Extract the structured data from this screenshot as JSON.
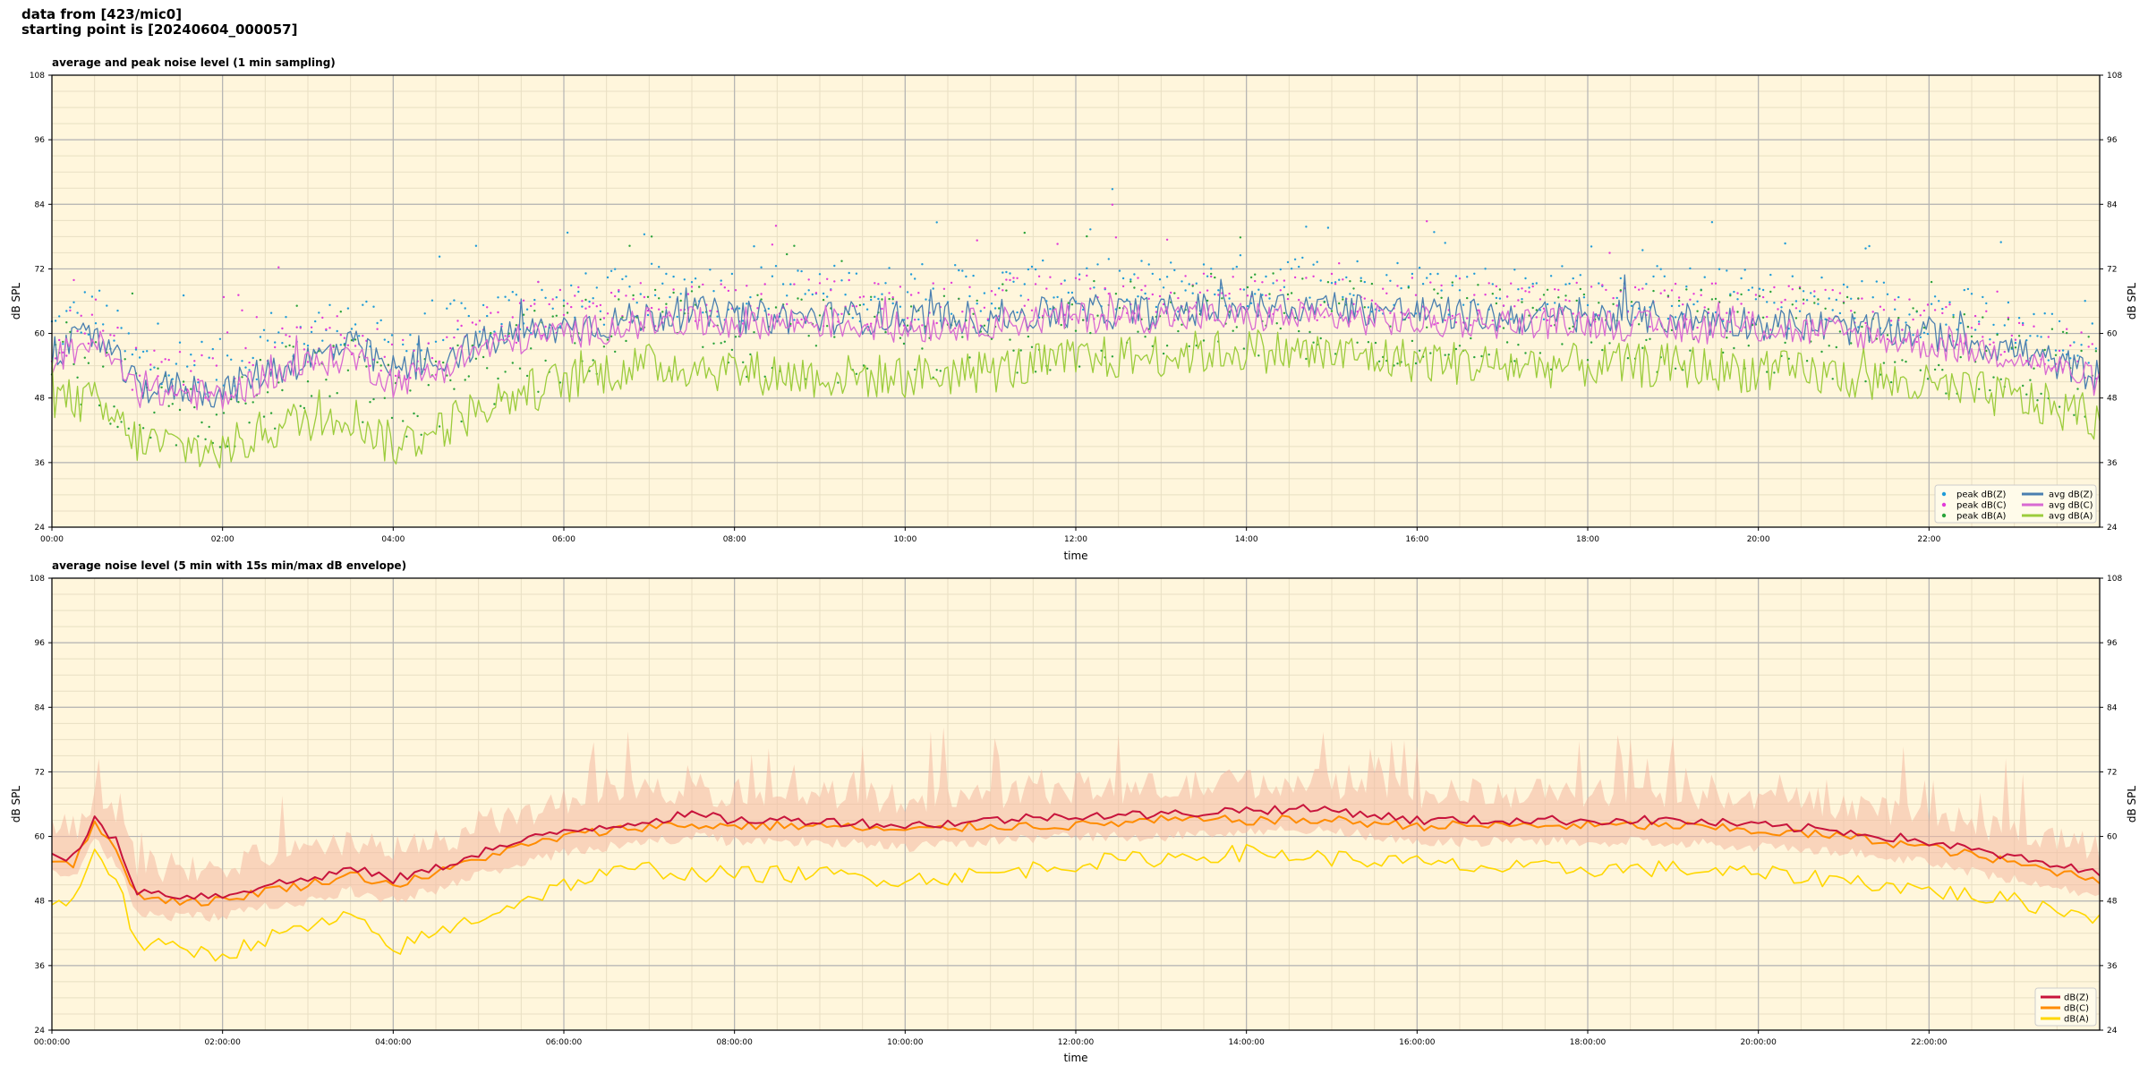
{
  "header": {
    "line1": "data from [423/mic0]",
    "line2": "starting point is [20240604_000057]"
  },
  "colors": {
    "background": "#fff6dc",
    "grid_major": "#b3b3b3",
    "grid_minor": "#e8dfc3",
    "peak_z": "#1f9bd8",
    "peak_c": "#e23ad8",
    "peak_a": "#2aa33a",
    "avg_z": "#4a7fb0",
    "avg_c": "#d86ad2",
    "avg_a": "#9ccc3c",
    "z": "#c8143c",
    "c": "#ff8c00",
    "a": "#ffd700",
    "envelope": "#f4b8a0"
  },
  "chart_data": [
    {
      "type": "scatter",
      "title": "average and peak noise level (1 min sampling)",
      "xlabel": "time",
      "ylabel": "dB SPL",
      "ylim": [
        24,
        108
      ],
      "yticks": [
        "24",
        "36",
        "48",
        "60",
        "72",
        "84",
        "96",
        "108"
      ],
      "xlim_hours": [
        0,
        24
      ],
      "xticks": [
        "00:00",
        "02:00",
        "04:00",
        "06:00",
        "08:00",
        "10:00",
        "12:00",
        "14:00",
        "16:00",
        "18:00",
        "20:00",
        "22:00"
      ],
      "grid": true,
      "legend_position": "bottom-right",
      "legend": [
        "peak dB(Z)",
        "peak dB(C)",
        "peak dB(A)",
        "avg dB(Z)",
        "avg dB(C)",
        "avg dB(A)"
      ],
      "series": [
        {
          "name": "avg dB(Z)",
          "kind": "line",
          "x_hours": [
            0,
            0.5,
            1,
            1.5,
            2,
            2.5,
            3,
            3.5,
            4,
            4.5,
            5,
            5.5,
            6,
            6.5,
            7,
            7.5,
            8,
            9,
            10,
            11,
            12,
            13,
            14,
            15,
            16,
            17,
            18,
            19,
            20,
            21,
            22,
            23,
            24
          ],
          "values": [
            56,
            60,
            50,
            50,
            49,
            53,
            55,
            58,
            53,
            55,
            58,
            60,
            61,
            62,
            63,
            64,
            63,
            63,
            63,
            63,
            64,
            64,
            65,
            65,
            64,
            63,
            63,
            63,
            62,
            61,
            60,
            57,
            52
          ]
        },
        {
          "name": "avg dB(C)",
          "kind": "line",
          "x_hours": [
            0,
            0.5,
            1,
            1.5,
            2,
            2.5,
            3,
            3.5,
            4,
            4.5,
            5,
            5.5,
            6,
            6.5,
            7,
            7.5,
            8,
            9,
            10,
            11,
            12,
            13,
            14,
            15,
            16,
            17,
            18,
            19,
            20,
            21,
            22,
            23,
            24
          ],
          "values": [
            55,
            59,
            49,
            49,
            48,
            52,
            54,
            56,
            51,
            53,
            57,
            59,
            60,
            61,
            62,
            62,
            62,
            62,
            61,
            62,
            63,
            63,
            63,
            63,
            62,
            62,
            62,
            61,
            61,
            60,
            58,
            56,
            51
          ]
        },
        {
          "name": "avg dB(A)",
          "kind": "line",
          "x_hours": [
            0,
            0.5,
            1,
            1.5,
            2,
            2.5,
            3,
            3.5,
            4,
            4.5,
            5,
            5.5,
            6,
            6.5,
            7,
            7.5,
            8,
            9,
            10,
            11,
            12,
            13,
            14,
            15,
            16,
            17,
            18,
            19,
            20,
            21,
            22,
            23,
            24
          ],
          "values": [
            48,
            47,
            40,
            39,
            38,
            42,
            44,
            45,
            39,
            42,
            46,
            49,
            51,
            53,
            54,
            54,
            53,
            52,
            52,
            53,
            55,
            56,
            57,
            56,
            55,
            54,
            54,
            54,
            53,
            52,
            50,
            48,
            44
          ]
        }
      ]
    },
    {
      "type": "line",
      "title": "average noise level (5 min with 15s min/max dB envelope)",
      "xlabel": "time",
      "ylabel": "dB SPL",
      "ylim": [
        24,
        108
      ],
      "yticks": [
        "24",
        "36",
        "48",
        "60",
        "72",
        "84",
        "96",
        "108"
      ],
      "xlim_hours": [
        0,
        24
      ],
      "xticks": [
        "00:00:00",
        "02:00:00",
        "04:00:00",
        "06:00:00",
        "08:00:00",
        "10:00:00",
        "12:00:00",
        "14:00:00",
        "16:00:00",
        "18:00:00",
        "20:00:00",
        "22:00:00"
      ],
      "grid": true,
      "legend_position": "bottom-right",
      "legend": [
        "dB(Z)",
        "dB(C)",
        "dB(A)"
      ],
      "series": [
        {
          "name": "dB(Z)",
          "x_hours": [
            0,
            0.25,
            0.5,
            0.75,
            1,
            1.5,
            2,
            2.5,
            3,
            3.5,
            4,
            4.5,
            5,
            5.5,
            6,
            6.5,
            7,
            7.5,
            8,
            9,
            10,
            11,
            12,
            13,
            14,
            15,
            16,
            17,
            18,
            19,
            20,
            21,
            22,
            23,
            24
          ],
          "values": [
            57,
            56,
            63,
            59,
            50,
            49,
            49,
            51,
            52,
            54,
            52,
            54,
            57,
            59,
            61,
            62,
            63,
            64,
            63,
            63,
            62,
            63,
            64,
            64,
            65,
            65,
            63,
            63,
            63,
            63,
            62,
            61,
            59,
            56,
            53
          ]
        },
        {
          "name": "dB(C)",
          "x_hours": [
            0,
            0.25,
            0.5,
            0.75,
            1,
            1.5,
            2,
            2.5,
            3,
            3.5,
            4,
            4.5,
            5,
            5.5,
            6,
            6.5,
            7,
            7.5,
            8,
            9,
            10,
            11,
            12,
            13,
            14,
            15,
            16,
            17,
            18,
            19,
            20,
            21,
            22,
            23,
            24
          ],
          "values": [
            56,
            55,
            62,
            58,
            49,
            48,
            48,
            50,
            51,
            53,
            51,
            53,
            56,
            58,
            60,
            61,
            62,
            62,
            62,
            62,
            61,
            62,
            62,
            63,
            63,
            63,
            62,
            62,
            62,
            62,
            61,
            60,
            58,
            55,
            52
          ]
        },
        {
          "name": "dB(A)",
          "x_hours": [
            0,
            0.25,
            0.5,
            0.75,
            1,
            1.5,
            2,
            2.5,
            3,
            3.5,
            4,
            4.5,
            5,
            5.5,
            6,
            6.5,
            7,
            7.5,
            8,
            9,
            10,
            11,
            12,
            13,
            14,
            15,
            16,
            17,
            18,
            19,
            20,
            21,
            22,
            23,
            24
          ],
          "values": [
            47,
            48,
            58,
            52,
            40,
            39,
            38,
            41,
            43,
            45,
            39,
            42,
            45,
            48,
            51,
            53,
            54,
            53,
            53,
            53,
            52,
            53,
            55,
            56,
            57,
            56,
            55,
            54,
            54,
            54,
            53,
            52,
            50,
            48,
            45
          ]
        }
      ]
    }
  ]
}
